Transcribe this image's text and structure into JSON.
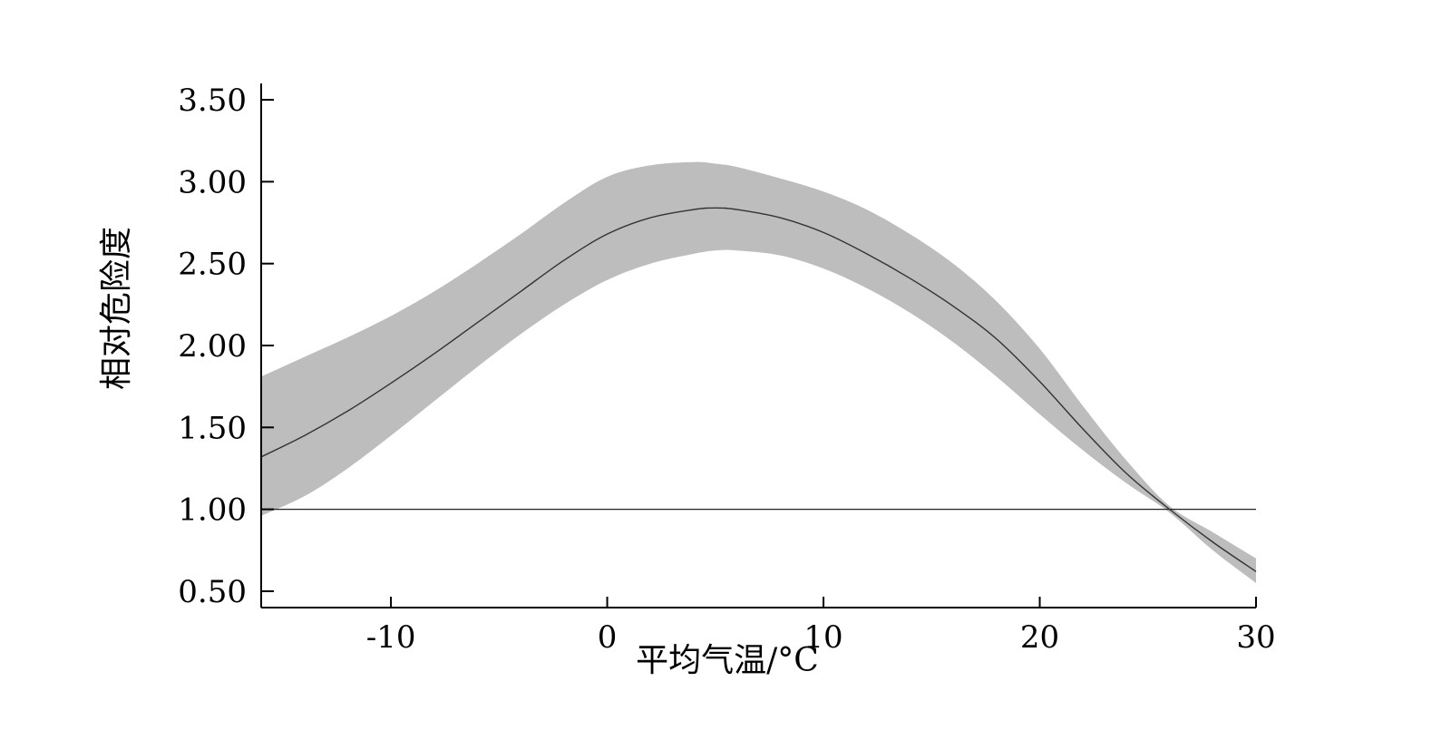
{
  "chart_data": {
    "type": "line",
    "title": "",
    "xlabel": "平均气温/°C",
    "ylabel": "相对危险度",
    "xlim": [
      -16,
      30
    ],
    "ylim": [
      0.4,
      3.6
    ],
    "x_ticks": [
      -10,
      0,
      10,
      20,
      30
    ],
    "x_tick_labels": [
      "-10",
      "0",
      "10",
      "20",
      "30"
    ],
    "y_ticks": [
      0.5,
      1.0,
      1.5,
      2.0,
      2.5,
      3.0,
      3.5
    ],
    "y_tick_labels": [
      "0.50",
      "1.00",
      "1.50",
      "2.00",
      "2.50",
      "3.00",
      "3.50"
    ],
    "reference_line": {
      "y": 1.0
    },
    "grid": false,
    "legend": "none",
    "colors": {
      "line": "#333333",
      "band": "#bdbdbd",
      "axis": "#000000"
    },
    "series": [
      {
        "x": [
          -16,
          -14,
          -12,
          -10,
          -8,
          -6,
          -4,
          -2,
          0,
          2,
          4,
          5,
          6,
          8,
          10,
          12,
          14,
          16,
          18,
          20,
          22,
          24,
          26,
          28,
          30
        ],
        "y": [
          1.32,
          1.45,
          1.6,
          1.77,
          1.95,
          2.14,
          2.33,
          2.52,
          2.68,
          2.78,
          2.83,
          2.84,
          2.83,
          2.78,
          2.69,
          2.56,
          2.41,
          2.24,
          2.04,
          1.78,
          1.49,
          1.22,
          1.0,
          0.8,
          0.62
        ],
        "lower": [
          0.96,
          1.08,
          1.25,
          1.45,
          1.66,
          1.87,
          2.07,
          2.25,
          2.4,
          2.5,
          2.56,
          2.58,
          2.58,
          2.55,
          2.47,
          2.35,
          2.2,
          2.02,
          1.81,
          1.58,
          1.36,
          1.16,
          0.98,
          0.75,
          0.55
        ],
        "upper": [
          1.81,
          1.93,
          2.05,
          2.18,
          2.33,
          2.5,
          2.68,
          2.87,
          3.03,
          3.1,
          3.12,
          3.11,
          3.09,
          3.02,
          2.94,
          2.83,
          2.68,
          2.5,
          2.27,
          1.98,
          1.63,
          1.3,
          1.02,
          0.86,
          0.7
        ]
      }
    ]
  }
}
